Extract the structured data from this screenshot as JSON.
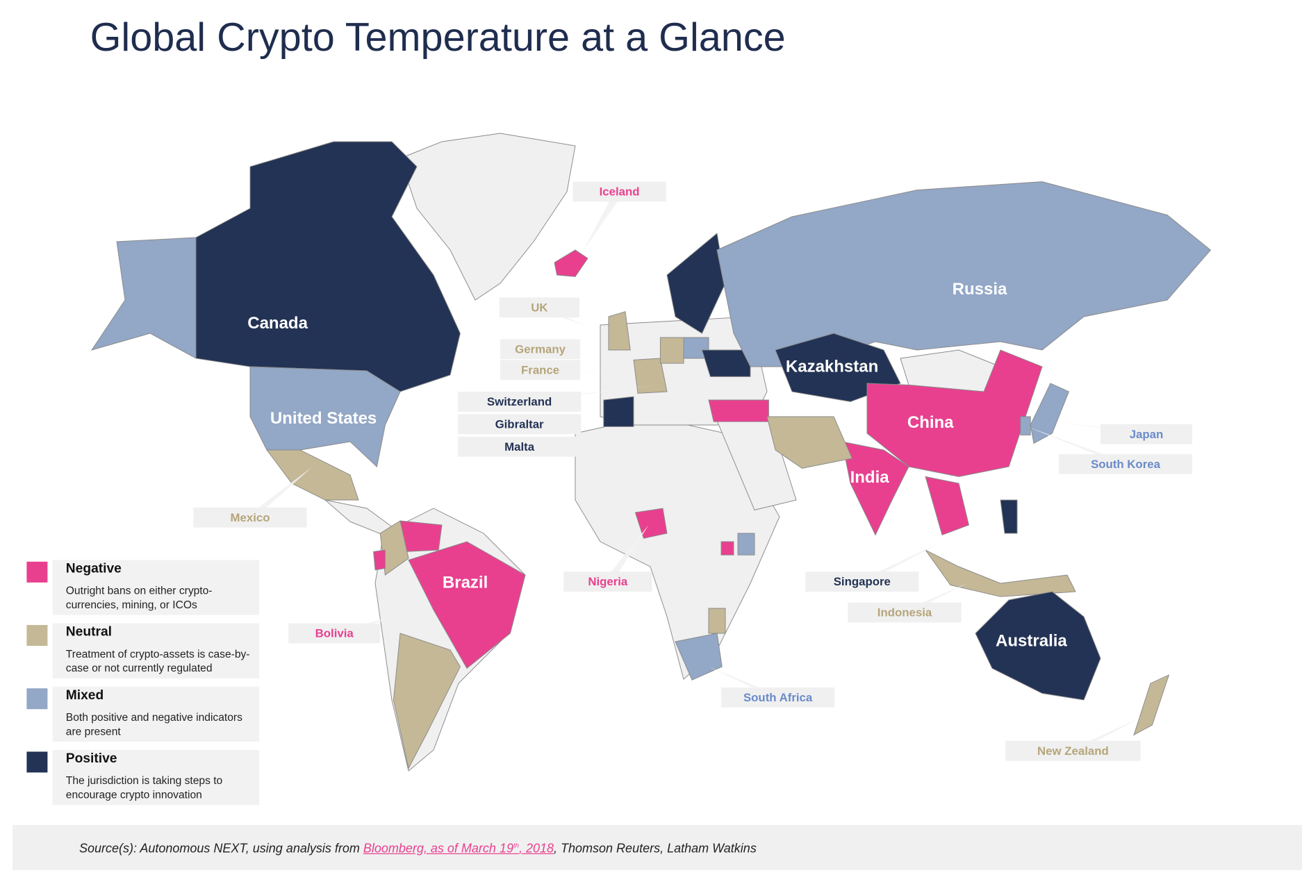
{
  "title": "Global Crypto Temperature at a Glance",
  "legend": [
    {
      "name": "Negative",
      "description": "Outright bans on either crypto-currencies, mining, or ICOs",
      "color": "#e8408f"
    },
    {
      "name": "Neutral",
      "description": "Treatment of crypto-assets is case-by-case or not currently regulated",
      "color": "#c4b896"
    },
    {
      "name": "Mixed",
      "description": "Both positive and negative indicators are present",
      "color": "#93a7c6"
    },
    {
      "name": "Positive",
      "description": "The jurisdiction is taking steps to encourage crypto innovation",
      "color": "#233355"
    }
  ],
  "map_labels": [
    {
      "text": "Canada",
      "category": "Positive"
    },
    {
      "text": "United States",
      "category": "Mixed"
    },
    {
      "text": "Brazil",
      "category": "Negative"
    },
    {
      "text": "Russia",
      "category": "Mixed"
    },
    {
      "text": "Kazakhstan",
      "category": "Positive"
    },
    {
      "text": "China",
      "category": "Negative"
    },
    {
      "text": "India",
      "category": "Negative"
    },
    {
      "text": "Australia",
      "category": "Positive"
    }
  ],
  "callouts": [
    {
      "text": "Iceland",
      "category": "Negative"
    },
    {
      "text": "UK",
      "category": "Neutral"
    },
    {
      "text": "Germany",
      "category": "Neutral"
    },
    {
      "text": "France",
      "category": "Neutral"
    },
    {
      "text": "Switzerland",
      "category": "Positive"
    },
    {
      "text": "Gibraltar",
      "category": "Positive"
    },
    {
      "text": "Malta",
      "category": "Positive"
    },
    {
      "text": "Mexico",
      "category": "Neutral"
    },
    {
      "text": "Bolivia",
      "category": "Negative"
    },
    {
      "text": "Nigeria",
      "category": "Negative"
    },
    {
      "text": "Singapore",
      "category": "Positive"
    },
    {
      "text": "Indonesia",
      "category": "Neutral"
    },
    {
      "text": "South Africa",
      "category": "Mixed"
    },
    {
      "text": "Japan",
      "category": "Mixed"
    },
    {
      "text": "South Korea",
      "category": "Mixed"
    },
    {
      "text": "New Zealand",
      "category": "Neutral"
    }
  ],
  "source": {
    "prefix": "Source(s): Autonomous NEXT, using analysis from ",
    "link_parts": [
      "Bloomberg, as of  March 19",
      "th",
      ", 2018"
    ],
    "suffix": ", Thomson Reuters, Latham Watkins"
  }
}
